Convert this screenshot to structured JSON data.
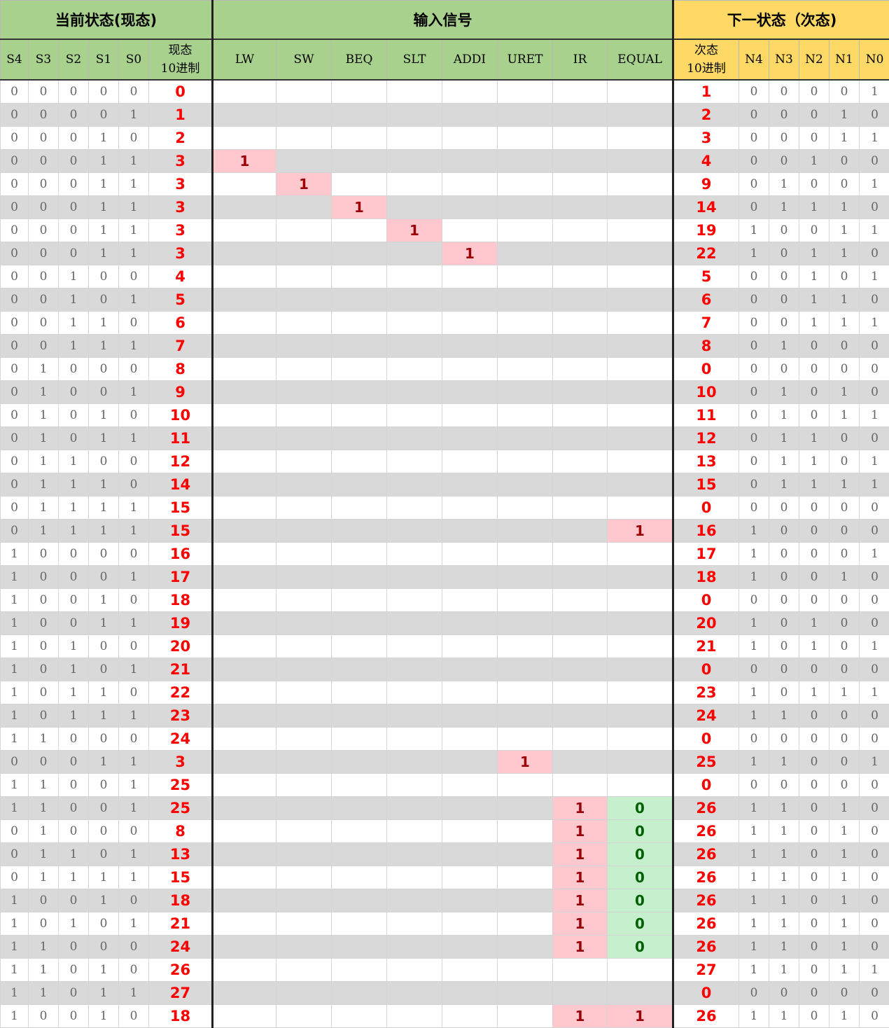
{
  "groups": {
    "current_state": "当前状态(现态)",
    "input_signals": "输入信号",
    "next_state": "下一状态（次态)"
  },
  "columns": {
    "s4": "S4",
    "s3": "S3",
    "s2": "S2",
    "s1": "S1",
    "s0": "S0",
    "cur_dec_line1": "现态",
    "cur_dec_line2": "10进制",
    "lw": "LW",
    "sw": "SW",
    "beq": "BEQ",
    "slt": "SLT",
    "addi": "ADDI",
    "uret": "URET",
    "ir": "IR",
    "equal": "EQUAL",
    "next_dec_line1": "次态",
    "next_dec_line2": "10进制",
    "n4": "N4",
    "n3": "N3",
    "n2": "N2",
    "n1": "N1",
    "n0": "N0"
  },
  "colors": {
    "header_green": "#a9d18e",
    "header_yellow": "#ffd966",
    "decimal_red": "#ff0000",
    "signal_one_bg": "#ffc7ce",
    "signal_zero_bg": "#c6efce",
    "stripe_gray": "#d9d9d9"
  },
  "rows": [
    {
      "s": [
        "0",
        "0",
        "0",
        "0",
        "0"
      ],
      "cur": "0",
      "sig": [
        "",
        "",
        "",
        "",
        "",
        "",
        "",
        ""
      ],
      "next": "1",
      "n": [
        "0",
        "0",
        "0",
        "0",
        "1"
      ]
    },
    {
      "s": [
        "0",
        "0",
        "0",
        "0",
        "1"
      ],
      "cur": "1",
      "sig": [
        "",
        "",
        "",
        "",
        "",
        "",
        "",
        ""
      ],
      "next": "2",
      "n": [
        "0",
        "0",
        "0",
        "1",
        "0"
      ]
    },
    {
      "s": [
        "0",
        "0",
        "0",
        "1",
        "0"
      ],
      "cur": "2",
      "sig": [
        "",
        "",
        "",
        "",
        "",
        "",
        "",
        ""
      ],
      "next": "3",
      "n": [
        "0",
        "0",
        "0",
        "1",
        "1"
      ]
    },
    {
      "s": [
        "0",
        "0",
        "0",
        "1",
        "1"
      ],
      "cur": "3",
      "sig": [
        "1",
        "",
        "",
        "",
        "",
        "",
        "",
        ""
      ],
      "next": "4",
      "n": [
        "0",
        "0",
        "1",
        "0",
        "0"
      ]
    },
    {
      "s": [
        "0",
        "0",
        "0",
        "1",
        "1"
      ],
      "cur": "3",
      "sig": [
        "",
        "1",
        "",
        "",
        "",
        "",
        "",
        ""
      ],
      "next": "9",
      "n": [
        "0",
        "1",
        "0",
        "0",
        "1"
      ]
    },
    {
      "s": [
        "0",
        "0",
        "0",
        "1",
        "1"
      ],
      "cur": "3",
      "sig": [
        "",
        "",
        "1",
        "",
        "",
        "",
        "",
        ""
      ],
      "next": "14",
      "n": [
        "0",
        "1",
        "1",
        "1",
        "0"
      ]
    },
    {
      "s": [
        "0",
        "0",
        "0",
        "1",
        "1"
      ],
      "cur": "3",
      "sig": [
        "",
        "",
        "",
        "1",
        "",
        "",
        "",
        ""
      ],
      "next": "19",
      "n": [
        "1",
        "0",
        "0",
        "1",
        "1"
      ]
    },
    {
      "s": [
        "0",
        "0",
        "0",
        "1",
        "1"
      ],
      "cur": "3",
      "sig": [
        "",
        "",
        "",
        "",
        "1",
        "",
        "",
        ""
      ],
      "next": "22",
      "n": [
        "1",
        "0",
        "1",
        "1",
        "0"
      ]
    },
    {
      "s": [
        "0",
        "0",
        "1",
        "0",
        "0"
      ],
      "cur": "4",
      "sig": [
        "",
        "",
        "",
        "",
        "",
        "",
        "",
        ""
      ],
      "next": "5",
      "n": [
        "0",
        "0",
        "1",
        "0",
        "1"
      ]
    },
    {
      "s": [
        "0",
        "0",
        "1",
        "0",
        "1"
      ],
      "cur": "5",
      "sig": [
        "",
        "",
        "",
        "",
        "",
        "",
        "",
        ""
      ],
      "next": "6",
      "n": [
        "0",
        "0",
        "1",
        "1",
        "0"
      ]
    },
    {
      "s": [
        "0",
        "0",
        "1",
        "1",
        "0"
      ],
      "cur": "6",
      "sig": [
        "",
        "",
        "",
        "",
        "",
        "",
        "",
        ""
      ],
      "next": "7",
      "n": [
        "0",
        "0",
        "1",
        "1",
        "1"
      ]
    },
    {
      "s": [
        "0",
        "0",
        "1",
        "1",
        "1"
      ],
      "cur": "7",
      "sig": [
        "",
        "",
        "",
        "",
        "",
        "",
        "",
        ""
      ],
      "next": "8",
      "n": [
        "0",
        "1",
        "0",
        "0",
        "0"
      ]
    },
    {
      "s": [
        "0",
        "1",
        "0",
        "0",
        "0"
      ],
      "cur": "8",
      "sig": [
        "",
        "",
        "",
        "",
        "",
        "",
        "",
        ""
      ],
      "next": "0",
      "n": [
        "0",
        "0",
        "0",
        "0",
        "0"
      ]
    },
    {
      "s": [
        "0",
        "1",
        "0",
        "0",
        "1"
      ],
      "cur": "9",
      "sig": [
        "",
        "",
        "",
        "",
        "",
        "",
        "",
        ""
      ],
      "next": "10",
      "n": [
        "0",
        "1",
        "0",
        "1",
        "0"
      ]
    },
    {
      "s": [
        "0",
        "1",
        "0",
        "1",
        "0"
      ],
      "cur": "10",
      "sig": [
        "",
        "",
        "",
        "",
        "",
        "",
        "",
        ""
      ],
      "next": "11",
      "n": [
        "0",
        "1",
        "0",
        "1",
        "1"
      ]
    },
    {
      "s": [
        "0",
        "1",
        "0",
        "1",
        "1"
      ],
      "cur": "11",
      "sig": [
        "",
        "",
        "",
        "",
        "",
        "",
        "",
        ""
      ],
      "next": "12",
      "n": [
        "0",
        "1",
        "1",
        "0",
        "0"
      ]
    },
    {
      "s": [
        "0",
        "1",
        "1",
        "0",
        "0"
      ],
      "cur": "12",
      "sig": [
        "",
        "",
        "",
        "",
        "",
        "",
        "",
        ""
      ],
      "next": "13",
      "n": [
        "0",
        "1",
        "1",
        "0",
        "1"
      ]
    },
    {
      "s": [
        "0",
        "1",
        "1",
        "1",
        "0"
      ],
      "cur": "14",
      "sig": [
        "",
        "",
        "",
        "",
        "",
        "",
        "",
        ""
      ],
      "next": "15",
      "n": [
        "0",
        "1",
        "1",
        "1",
        "1"
      ]
    },
    {
      "s": [
        "0",
        "1",
        "1",
        "1",
        "1"
      ],
      "cur": "15",
      "sig": [
        "",
        "",
        "",
        "",
        "",
        "",
        "",
        ""
      ],
      "next": "0",
      "n": [
        "0",
        "0",
        "0",
        "0",
        "0"
      ]
    },
    {
      "s": [
        "0",
        "1",
        "1",
        "1",
        "1"
      ],
      "cur": "15",
      "sig": [
        "",
        "",
        "",
        "",
        "",
        "",
        "",
        "1"
      ],
      "next": "16",
      "n": [
        "1",
        "0",
        "0",
        "0",
        "0"
      ]
    },
    {
      "s": [
        "1",
        "0",
        "0",
        "0",
        "0"
      ],
      "cur": "16",
      "sig": [
        "",
        "",
        "",
        "",
        "",
        "",
        "",
        ""
      ],
      "next": "17",
      "n": [
        "1",
        "0",
        "0",
        "0",
        "1"
      ]
    },
    {
      "s": [
        "1",
        "0",
        "0",
        "0",
        "1"
      ],
      "cur": "17",
      "sig": [
        "",
        "",
        "",
        "",
        "",
        "",
        "",
        ""
      ],
      "next": "18",
      "n": [
        "1",
        "0",
        "0",
        "1",
        "0"
      ]
    },
    {
      "s": [
        "1",
        "0",
        "0",
        "1",
        "0"
      ],
      "cur": "18",
      "sig": [
        "",
        "",
        "",
        "",
        "",
        "",
        "",
        ""
      ],
      "next": "0",
      "n": [
        "0",
        "0",
        "0",
        "0",
        "0"
      ]
    },
    {
      "s": [
        "1",
        "0",
        "0",
        "1",
        "1"
      ],
      "cur": "19",
      "sig": [
        "",
        "",
        "",
        "",
        "",
        "",
        "",
        ""
      ],
      "next": "20",
      "n": [
        "1",
        "0",
        "1",
        "0",
        "0"
      ]
    },
    {
      "s": [
        "1",
        "0",
        "1",
        "0",
        "0"
      ],
      "cur": "20",
      "sig": [
        "",
        "",
        "",
        "",
        "",
        "",
        "",
        ""
      ],
      "next": "21",
      "n": [
        "1",
        "0",
        "1",
        "0",
        "1"
      ]
    },
    {
      "s": [
        "1",
        "0",
        "1",
        "0",
        "1"
      ],
      "cur": "21",
      "sig": [
        "",
        "",
        "",
        "",
        "",
        "",
        "",
        ""
      ],
      "next": "0",
      "n": [
        "0",
        "0",
        "0",
        "0",
        "0"
      ]
    },
    {
      "s": [
        "1",
        "0",
        "1",
        "1",
        "0"
      ],
      "cur": "22",
      "sig": [
        "",
        "",
        "",
        "",
        "",
        "",
        "",
        ""
      ],
      "next": "23",
      "n": [
        "1",
        "0",
        "1",
        "1",
        "1"
      ]
    },
    {
      "s": [
        "1",
        "0",
        "1",
        "1",
        "1"
      ],
      "cur": "23",
      "sig": [
        "",
        "",
        "",
        "",
        "",
        "",
        "",
        ""
      ],
      "next": "24",
      "n": [
        "1",
        "1",
        "0",
        "0",
        "0"
      ]
    },
    {
      "s": [
        "1",
        "1",
        "0",
        "0",
        "0"
      ],
      "cur": "24",
      "sig": [
        "",
        "",
        "",
        "",
        "",
        "",
        "",
        ""
      ],
      "next": "0",
      "n": [
        "0",
        "0",
        "0",
        "0",
        "0"
      ]
    },
    {
      "s": [
        "0",
        "0",
        "0",
        "1",
        "1"
      ],
      "cur": "3",
      "sig": [
        "",
        "",
        "",
        "",
        "",
        "1",
        "",
        ""
      ],
      "next": "25",
      "n": [
        "1",
        "1",
        "0",
        "0",
        "1"
      ]
    },
    {
      "s": [
        "1",
        "1",
        "0",
        "0",
        "1"
      ],
      "cur": "25",
      "sig": [
        "",
        "",
        "",
        "",
        "",
        "",
        "",
        ""
      ],
      "next": "0",
      "n": [
        "0",
        "0",
        "0",
        "0",
        "0"
      ]
    },
    {
      "s": [
        "1",
        "1",
        "0",
        "0",
        "1"
      ],
      "cur": "25",
      "sig": [
        "",
        "",
        "",
        "",
        "",
        "",
        "1",
        "0"
      ],
      "next": "26",
      "n": [
        "1",
        "1",
        "0",
        "1",
        "0"
      ]
    },
    {
      "s": [
        "0",
        "1",
        "0",
        "0",
        "0"
      ],
      "cur": "8",
      "sig": [
        "",
        "",
        "",
        "",
        "",
        "",
        "1",
        "0"
      ],
      "next": "26",
      "n": [
        "1",
        "1",
        "0",
        "1",
        "0"
      ]
    },
    {
      "s": [
        "0",
        "1",
        "1",
        "0",
        "1"
      ],
      "cur": "13",
      "sig": [
        "",
        "",
        "",
        "",
        "",
        "",
        "1",
        "0"
      ],
      "next": "26",
      "n": [
        "1",
        "1",
        "0",
        "1",
        "0"
      ]
    },
    {
      "s": [
        "0",
        "1",
        "1",
        "1",
        "1"
      ],
      "cur": "15",
      "sig": [
        "",
        "",
        "",
        "",
        "",
        "",
        "1",
        "0"
      ],
      "next": "26",
      "n": [
        "1",
        "1",
        "0",
        "1",
        "0"
      ]
    },
    {
      "s": [
        "1",
        "0",
        "0",
        "1",
        "0"
      ],
      "cur": "18",
      "sig": [
        "",
        "",
        "",
        "",
        "",
        "",
        "1",
        "0"
      ],
      "next": "26",
      "n": [
        "1",
        "1",
        "0",
        "1",
        "0"
      ]
    },
    {
      "s": [
        "1",
        "0",
        "1",
        "0",
        "1"
      ],
      "cur": "21",
      "sig": [
        "",
        "",
        "",
        "",
        "",
        "",
        "1",
        "0"
      ],
      "next": "26",
      "n": [
        "1",
        "1",
        "0",
        "1",
        "0"
      ]
    },
    {
      "s": [
        "1",
        "1",
        "0",
        "0",
        "0"
      ],
      "cur": "24",
      "sig": [
        "",
        "",
        "",
        "",
        "",
        "",
        "1",
        "0"
      ],
      "next": "26",
      "n": [
        "1",
        "1",
        "0",
        "1",
        "0"
      ]
    },
    {
      "s": [
        "1",
        "1",
        "0",
        "1",
        "0"
      ],
      "cur": "26",
      "sig": [
        "",
        "",
        "",
        "",
        "",
        "",
        "",
        ""
      ],
      "next": "27",
      "n": [
        "1",
        "1",
        "0",
        "1",
        "1"
      ]
    },
    {
      "s": [
        "1",
        "1",
        "0",
        "1",
        "1"
      ],
      "cur": "27",
      "sig": [
        "",
        "",
        "",
        "",
        "",
        "",
        "",
        ""
      ],
      "next": "0",
      "n": [
        "0",
        "0",
        "0",
        "0",
        "0"
      ]
    },
    {
      "s": [
        "1",
        "0",
        "0",
        "1",
        "0"
      ],
      "cur": "18",
      "sig": [
        "",
        "",
        "",
        "",
        "",
        "",
        "1",
        "1"
      ],
      "next": "26",
      "n": [
        "1",
        "1",
        "0",
        "1",
        "0"
      ]
    }
  ]
}
